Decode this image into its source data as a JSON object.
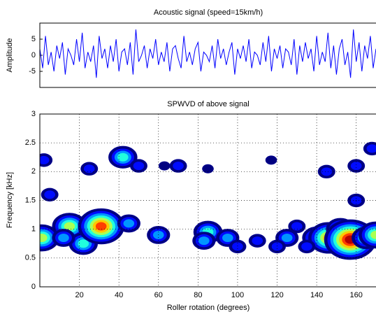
{
  "chart_data": [
    {
      "type": "line",
      "title": "Acoustic signal (speed=15km/h)",
      "y_label": "Amplitude",
      "series": [
        {
          "color": "#0000ff",
          "values": [
            2,
            -4,
            6,
            -3,
            1,
            -5,
            3,
            -1,
            4,
            -6,
            2,
            0,
            -3,
            5,
            -2,
            7,
            -4,
            1,
            -2,
            3,
            -7,
            6,
            -1,
            2,
            -4,
            3,
            -2,
            5,
            -5,
            1,
            2,
            -3,
            4,
            -6,
            8,
            -2,
            0,
            3,
            -4,
            2,
            -1,
            5,
            -3,
            1,
            -2,
            4,
            -5,
            2,
            3,
            -1,
            -4,
            6,
            -2,
            1,
            -3,
            2,
            4,
            -5,
            1,
            0,
            -2,
            3,
            -4,
            5,
            -1,
            2,
            -3,
            1,
            4,
            -6,
            2,
            -1,
            3,
            -2,
            5,
            -4,
            1,
            0,
            -3,
            4,
            -2,
            6,
            -5,
            2,
            -1,
            3,
            -4,
            2,
            1,
            -3,
            5,
            -6,
            3,
            -2,
            4,
            -1,
            2,
            -5,
            6,
            -3,
            1,
            -2,
            7,
            -4,
            3,
            -6,
            2,
            5,
            -3,
            1,
            -7,
            8,
            -2,
            4,
            -5,
            3,
            -1,
            6,
            -4,
            2
          ]
        }
      ],
      "ylim": [
        -10,
        10
      ],
      "yticks": [
        5,
        0,
        -5
      ]
    },
    {
      "type": "contour",
      "title": "SPWVD of above signal",
      "x_label": "Roller rotation (degrees)",
      "y_label": "Frequency [kHz]",
      "colormap": "jet",
      "grid": true,
      "x": [
        1,
        15,
        22,
        31,
        12,
        42,
        45,
        60,
        85,
        83,
        95,
        100,
        110,
        125,
        130,
        140,
        146,
        152,
        157,
        165,
        170,
        2,
        25,
        50,
        63,
        70,
        85,
        117,
        145,
        160,
        168,
        5,
        160,
        120,
        135
      ],
      "y": [
        0.85,
        1.05,
        0.75,
        1.05,
        0.85,
        2.25,
        1.1,
        0.9,
        0.95,
        0.8,
        0.85,
        0.7,
        0.8,
        0.85,
        1.05,
        0.85,
        0.85,
        1.0,
        0.82,
        0.85,
        0.9,
        2.2,
        2.05,
        2.1,
        2.1,
        2.1,
        2.05,
        2.2,
        2.0,
        2.1,
        2.4,
        1.6,
        1.5,
        0.7,
        0.7
      ],
      "values": [
        5,
        5,
        4,
        7,
        3,
        4,
        3,
        3,
        4,
        3,
        3,
        2,
        2,
        3,
        2,
        4,
        6,
        4,
        8,
        4,
        5,
        2,
        2,
        2,
        1,
        2,
        1,
        1,
        2,
        2,
        2,
        2,
        2,
        2,
        2
      ],
      "xlim": [
        0,
        170
      ],
      "xticks": [
        20,
        40,
        60,
        80,
        100,
        120,
        140,
        160
      ],
      "ylim": [
        0,
        3
      ],
      "yticks": [
        0,
        0.5,
        1,
        1.5,
        2,
        2.5,
        3
      ]
    }
  ]
}
